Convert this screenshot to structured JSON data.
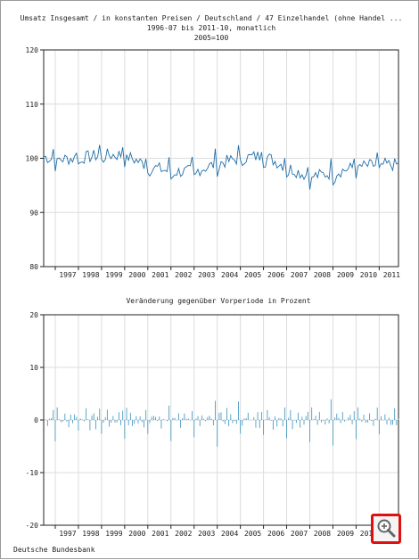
{
  "source": "Deutsche Bundesbank",
  "colors": {
    "line": "#1f6fa8",
    "bar": "#4a9cc4",
    "zoom_border": "#e01010"
  },
  "zoom_button_icon": "zoom-in-icon",
  "chart_data": [
    {
      "type": "line",
      "title_lines": [
        "Umsatz Insgesamt / in konstanten Preisen / Deutschland / 47 Einzelhandel (ohne Handel ...",
        "1996-07 bis 2011-10, monatlich",
        "2005=100"
      ],
      "xlabel": "",
      "ylabel": "",
      "x_ticks": [
        "1997",
        "1998",
        "1999",
        "2000",
        "2001",
        "2002",
        "2003",
        "2004",
        "2005",
        "2006",
        "2007",
        "2008",
        "2009",
        "2010",
        "2011"
      ],
      "y_ticks": [
        "120",
        "110",
        "100",
        "90",
        "80"
      ],
      "ylim": [
        80,
        120
      ],
      "x_range": [
        "1996-07",
        "2011-10"
      ],
      "grid": true,
      "yearly_mean_values": [
        100.8,
        99.8,
        100.0,
        100.6,
        100.6,
        98.6,
        97.5,
        97.6,
        99.0,
        100.0,
        100.5,
        98.4,
        96.6,
        97.3,
        98.4,
        98.8
      ]
    },
    {
      "type": "bar",
      "title_lines": [
        "Veränderung gegenüber Vorperiode in Prozent"
      ],
      "xlabel": "",
      "ylabel": "",
      "x_ticks": [
        "1997",
        "1998",
        "1999",
        "2000",
        "2001",
        "2002",
        "2003",
        "2004",
        "2005",
        "2006",
        "2007",
        "2008",
        "2009",
        "2010",
        "2011"
      ],
      "y_ticks": [
        "20",
        "10",
        "0",
        "-10",
        "-20"
      ],
      "ylim": [
        -20,
        20
      ],
      "x_range": [
        "1996-07",
        "2011-10"
      ],
      "grid": true,
      "note": "monthly percentage changes oscillating roughly between -4 and +3"
    }
  ]
}
